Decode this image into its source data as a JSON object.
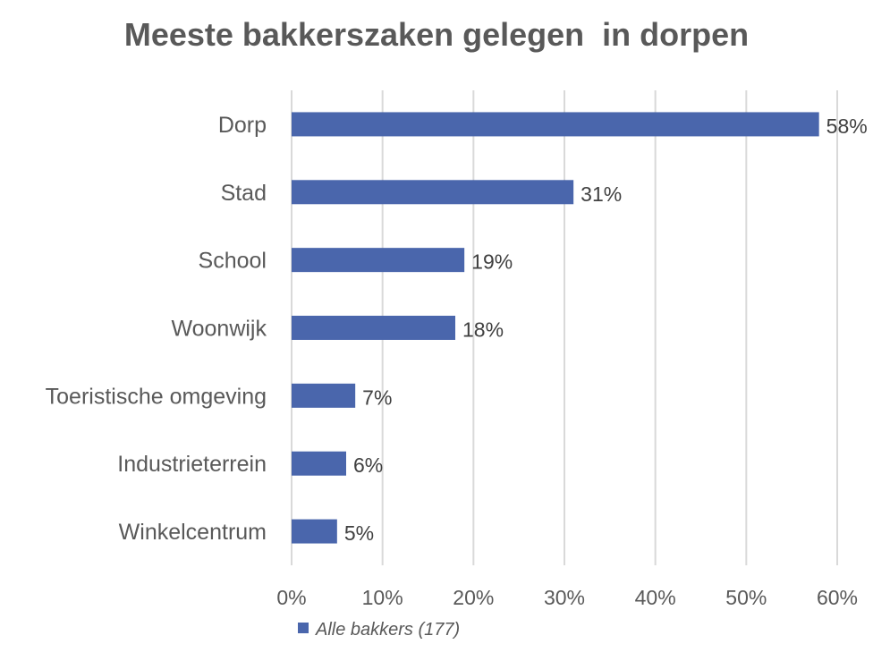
{
  "chart_data": {
    "type": "bar",
    "orientation": "horizontal",
    "title": "Meeste bakkerszaken gelegen  in dorpen",
    "categories": [
      "Dorp",
      "Stad",
      "School",
      "Woonwijk",
      "Toeristische omgeving",
      "Industrieterrein",
      "Winkelcentrum"
    ],
    "series": [
      {
        "name": "Alle bakkers (177)",
        "values": [
          58,
          31,
          19,
          18,
          7,
          6,
          5
        ],
        "labels": [
          "58%",
          "31%",
          "19%",
          "18%",
          "7%",
          "6%",
          "5%"
        ]
      }
    ],
    "xticks": [
      0,
      10,
      20,
      30,
      40,
      50,
      60
    ],
    "xtick_labels": [
      "0%",
      "10%",
      "20%",
      "30%",
      "40%",
      "50%",
      "60%"
    ],
    "xlim": [
      0,
      60
    ],
    "xlabel": "",
    "ylabel": "",
    "grid": true,
    "legend_position": "bottom-left",
    "colors": {
      "bar": "#4a66ac",
      "grid": "#d9d9d9",
      "text": "#595959"
    }
  }
}
